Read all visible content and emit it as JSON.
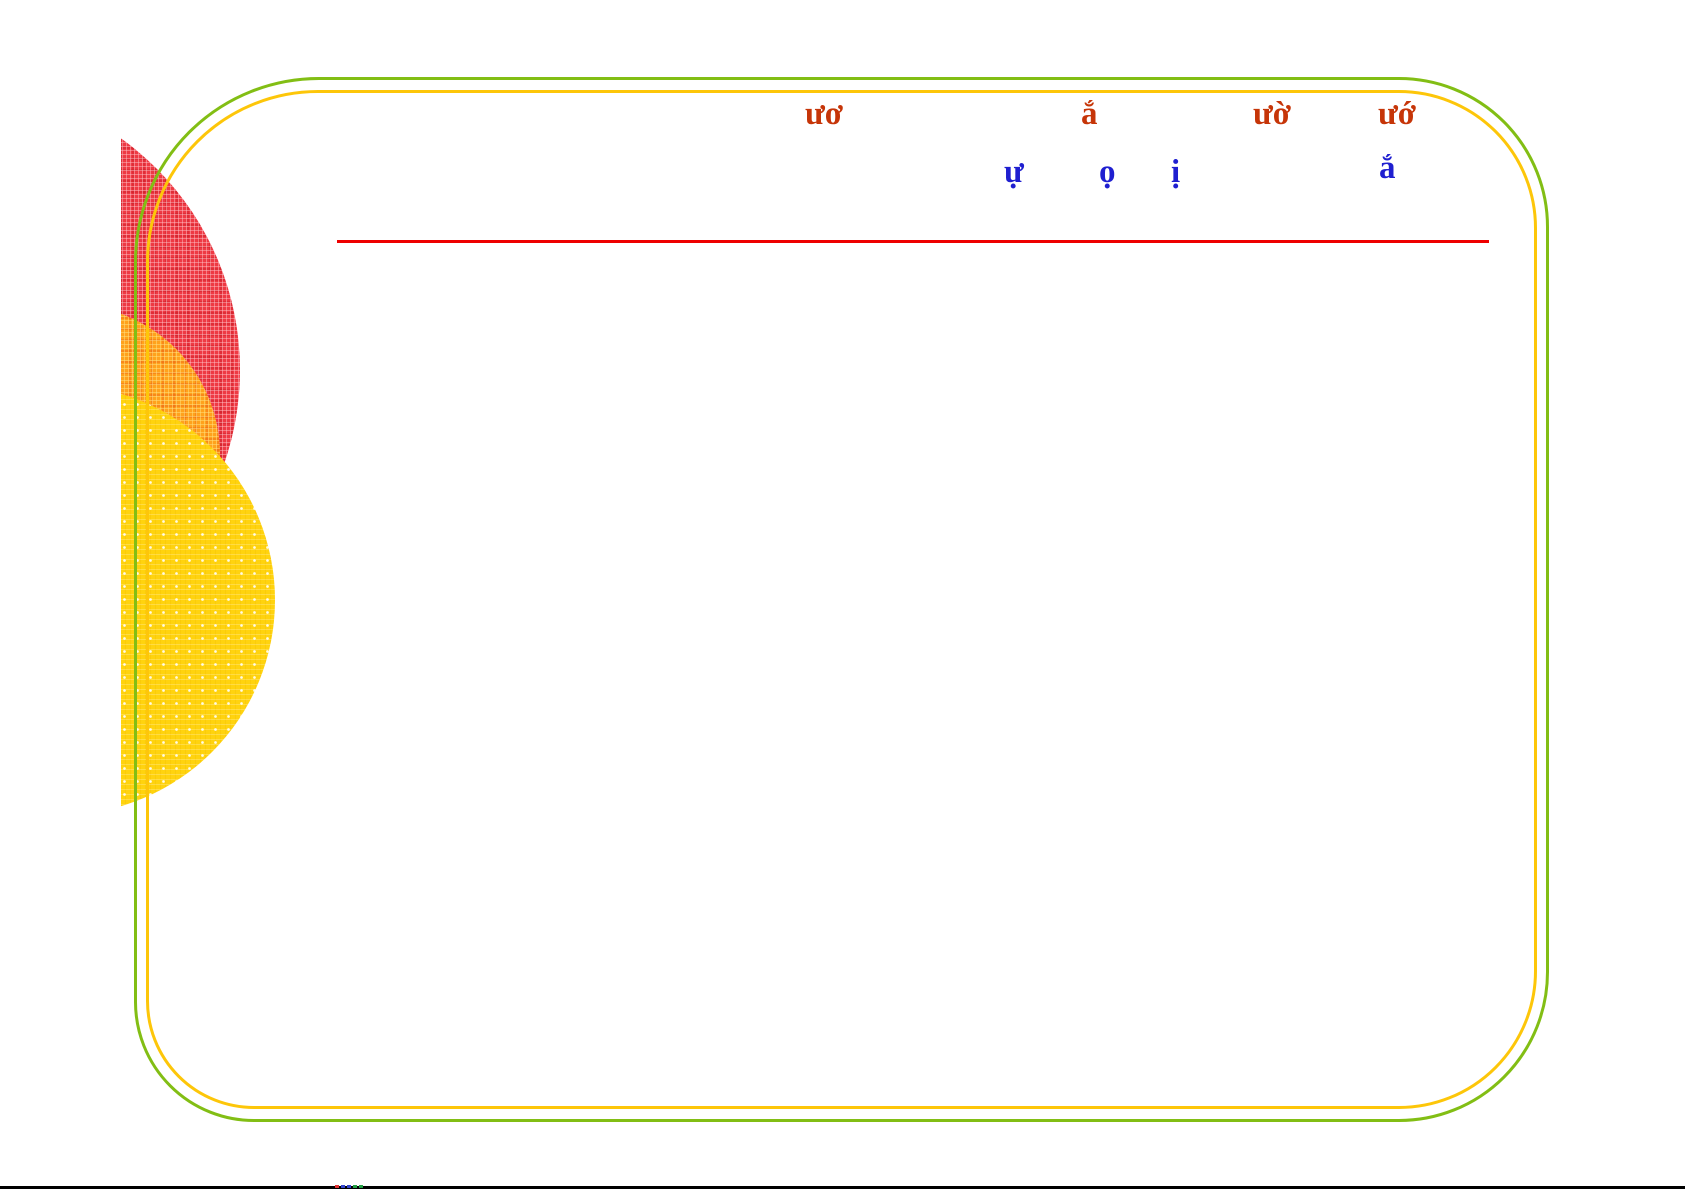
{
  "slide": {
    "heading_fragments": [
      {
        "text": "ươ"
      },
      {
        "text": "ắ"
      },
      {
        "text": "ườ"
      },
      {
        "text": "ướ"
      }
    ],
    "subheading_fragments": [
      {
        "text": "ự"
      },
      {
        "text": "ọ"
      },
      {
        "text": "ị"
      },
      {
        "text": "ắ"
      }
    ],
    "colors": {
      "heading_text": "#c63508",
      "subheading_text": "#1f1fd0",
      "underline": "#ee0000",
      "border_outer_green": "#82be14",
      "border_inner_yellow": "#fdc609",
      "circle_red": "#ee3a44",
      "circle_orange": "#ffa21c",
      "circle_yellow": "#ffd30e",
      "bottom_bar": "#000000"
    }
  },
  "footer": {
    "artifact_colors": [
      "#e03030",
      "#3344cc",
      "#3344cc",
      "#22a044",
      "#22a044"
    ]
  }
}
